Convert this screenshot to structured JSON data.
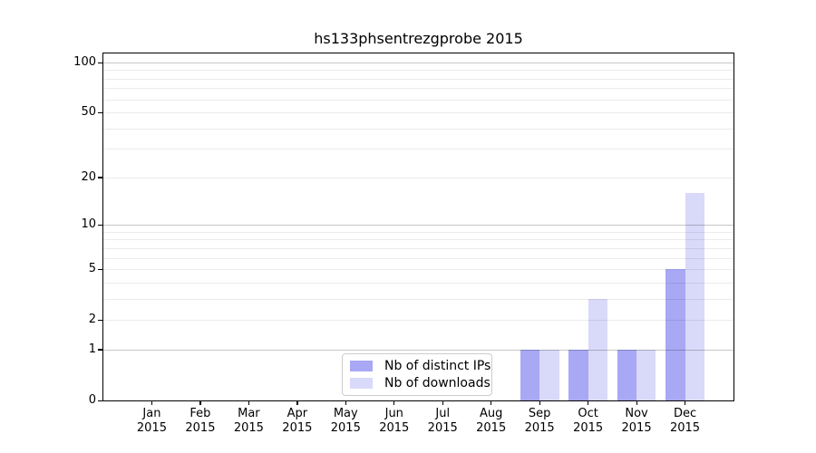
{
  "title": "hs133phsentrezgprobe 2015",
  "chart_data": {
    "type": "bar",
    "title": "hs133phsentrezgprobe 2015",
    "categories": [
      {
        "month": "Jan",
        "year": "2015"
      },
      {
        "month": "Feb",
        "year": "2015"
      },
      {
        "month": "Mar",
        "year": "2015"
      },
      {
        "month": "Apr",
        "year": "2015"
      },
      {
        "month": "May",
        "year": "2015"
      },
      {
        "month": "Jun",
        "year": "2015"
      },
      {
        "month": "Jul",
        "year": "2015"
      },
      {
        "month": "Aug",
        "year": "2015"
      },
      {
        "month": "Sep",
        "year": "2015"
      },
      {
        "month": "Oct",
        "year": "2015"
      },
      {
        "month": "Nov",
        "year": "2015"
      },
      {
        "month": "Dec",
        "year": "2015"
      }
    ],
    "series": [
      {
        "name": "Nb of distinct IPs",
        "color": "#a8a8f5",
        "values": [
          0,
          0,
          0,
          0,
          0,
          0,
          0,
          0,
          1,
          1,
          1,
          5
        ]
      },
      {
        "name": "Nb of downloads",
        "color": "#d9d9f9",
        "values": [
          0,
          0,
          0,
          0,
          0,
          0,
          0,
          0,
          1,
          3,
          1,
          16
        ]
      }
    ],
    "xlabel": "",
    "ylabel": "",
    "yscale": "log1p",
    "ylim": [
      0,
      115
    ],
    "yticks": [
      100,
      50,
      20,
      10,
      5,
      2,
      1,
      0
    ],
    "grid_major": [
      1,
      10,
      100
    ],
    "grid_minor": [
      2,
      3,
      4,
      5,
      6,
      7,
      8,
      9,
      20,
      30,
      40,
      50,
      60,
      70,
      80,
      90
    ],
    "legend_position": "inside-bottom-center"
  }
}
